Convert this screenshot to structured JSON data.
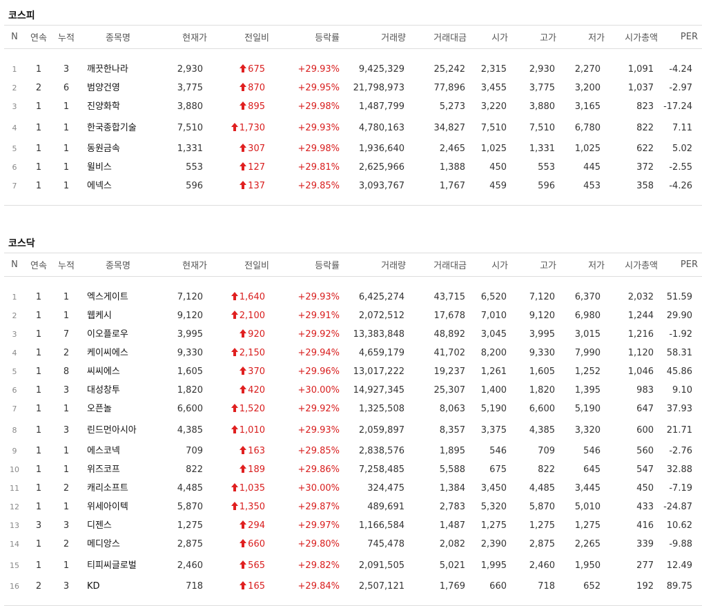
{
  "headers": [
    "N",
    "연속",
    "누적",
    "종목명",
    "현재가",
    "전일비",
    "등락률",
    "거래량",
    "거래대금",
    "시가",
    "고가",
    "저가",
    "시가총액",
    "PER"
  ],
  "kospi": {
    "title": "코스피",
    "rows": [
      {
        "n": "1",
        "cont": "1",
        "acc": "3",
        "name": "깨끗한나라",
        "price": "2,930",
        "diff": "675",
        "rate": "+29.93%",
        "vol": "9,425,329",
        "amt": "25,242",
        "open": "2,315",
        "high": "2,930",
        "low": "2,270",
        "cap": "1,091",
        "per": "-4.24"
      },
      {
        "n": "2",
        "cont": "2",
        "acc": "6",
        "name": "범양건영",
        "price": "3,775",
        "diff": "870",
        "rate": "+29.95%",
        "vol": "21,798,973",
        "amt": "77,896",
        "open": "3,455",
        "high": "3,775",
        "low": "3,200",
        "cap": "1,037",
        "per": "-2.97"
      },
      {
        "n": "3",
        "cont": "1",
        "acc": "1",
        "name": "진양화학",
        "price": "3,880",
        "diff": "895",
        "rate": "+29.98%",
        "vol": "1,487,799",
        "amt": "5,273",
        "open": "3,220",
        "high": "3,880",
        "low": "3,165",
        "cap": "823",
        "per": "-17.24"
      },
      {
        "n": "4",
        "cont": "1",
        "acc": "1",
        "name": "한국종합기술",
        "price": "7,510",
        "diff": "1,730",
        "rate": "+29.93%",
        "vol": "4,780,163",
        "amt": "34,827",
        "open": "7,510",
        "high": "7,510",
        "low": "6,780",
        "cap": "822",
        "per": "7.11"
      },
      {
        "n": "5",
        "cont": "1",
        "acc": "1",
        "name": "동원금속",
        "price": "1,331",
        "diff": "307",
        "rate": "+29.98%",
        "vol": "1,936,640",
        "amt": "2,465",
        "open": "1,025",
        "high": "1,331",
        "low": "1,025",
        "cap": "622",
        "per": "5.02"
      },
      {
        "n": "6",
        "cont": "1",
        "acc": "1",
        "name": "윌비스",
        "price": "553",
        "diff": "127",
        "rate": "+29.81%",
        "vol": "2,625,966",
        "amt": "1,388",
        "open": "450",
        "high": "553",
        "low": "445",
        "cap": "372",
        "per": "-2.55"
      },
      {
        "n": "7",
        "cont": "1",
        "acc": "1",
        "name": "에넥스",
        "price": "596",
        "diff": "137",
        "rate": "+29.85%",
        "vol": "3,093,767",
        "amt": "1,767",
        "open": "459",
        "high": "596",
        "low": "453",
        "cap": "358",
        "per": "-4.26"
      }
    ]
  },
  "kosdaq": {
    "title": "코스닥",
    "rows": [
      {
        "n": "1",
        "cont": "1",
        "acc": "1",
        "name": "엑스게이트",
        "price": "7,120",
        "diff": "1,640",
        "rate": "+29.93%",
        "vol": "6,425,274",
        "amt": "43,715",
        "open": "6,520",
        "high": "7,120",
        "low": "6,370",
        "cap": "2,032",
        "per": "51.59"
      },
      {
        "n": "2",
        "cont": "1",
        "acc": "1",
        "name": "웹케시",
        "price": "9,120",
        "diff": "2,100",
        "rate": "+29.91%",
        "vol": "2,072,512",
        "amt": "17,678",
        "open": "7,010",
        "high": "9,120",
        "low": "6,980",
        "cap": "1,244",
        "per": "29.90"
      },
      {
        "n": "3",
        "cont": "1",
        "acc": "7",
        "name": "이오플로우",
        "price": "3,995",
        "diff": "920",
        "rate": "+29.92%",
        "vol": "13,383,848",
        "amt": "48,892",
        "open": "3,045",
        "high": "3,995",
        "low": "3,015",
        "cap": "1,216",
        "per": "-1.92"
      },
      {
        "n": "4",
        "cont": "1",
        "acc": "2",
        "name": "케이씨에스",
        "price": "9,330",
        "diff": "2,150",
        "rate": "+29.94%",
        "vol": "4,659,179",
        "amt": "41,702",
        "open": "8,200",
        "high": "9,330",
        "low": "7,990",
        "cap": "1,120",
        "per": "58.31"
      },
      {
        "n": "5",
        "cont": "1",
        "acc": "8",
        "name": "씨씨에스",
        "price": "1,605",
        "diff": "370",
        "rate": "+29.96%",
        "vol": "13,017,222",
        "amt": "19,237",
        "open": "1,261",
        "high": "1,605",
        "low": "1,252",
        "cap": "1,046",
        "per": "45.86"
      },
      {
        "n": "6",
        "cont": "1",
        "acc": "3",
        "name": "대성창투",
        "price": "1,820",
        "diff": "420",
        "rate": "+30.00%",
        "vol": "14,927,345",
        "amt": "25,307",
        "open": "1,400",
        "high": "1,820",
        "low": "1,395",
        "cap": "983",
        "per": "9.10"
      },
      {
        "n": "7",
        "cont": "1",
        "acc": "1",
        "name": "오픈놀",
        "price": "6,600",
        "diff": "1,520",
        "rate": "+29.92%",
        "vol": "1,325,508",
        "amt": "8,063",
        "open": "5,190",
        "high": "6,600",
        "low": "5,190",
        "cap": "647",
        "per": "37.93"
      },
      {
        "n": "8",
        "cont": "1",
        "acc": "3",
        "name": "린드먼아시아",
        "price": "4,385",
        "diff": "1,010",
        "rate": "+29.93%",
        "vol": "2,059,897",
        "amt": "8,357",
        "open": "3,375",
        "high": "4,385",
        "low": "3,320",
        "cap": "600",
        "per": "21.71"
      },
      {
        "n": "9",
        "cont": "1",
        "acc": "1",
        "name": "에스코넥",
        "price": "709",
        "diff": "163",
        "rate": "+29.85%",
        "vol": "2,838,576",
        "amt": "1,895",
        "open": "546",
        "high": "709",
        "low": "546",
        "cap": "560",
        "per": "-2.76"
      },
      {
        "n": "10",
        "cont": "1",
        "acc": "1",
        "name": "위즈코프",
        "price": "822",
        "diff": "189",
        "rate": "+29.86%",
        "vol": "7,258,485",
        "amt": "5,588",
        "open": "675",
        "high": "822",
        "low": "645",
        "cap": "547",
        "per": "32.88"
      },
      {
        "n": "11",
        "cont": "1",
        "acc": "2",
        "name": "캐리소프트",
        "price": "4,485",
        "diff": "1,035",
        "rate": "+30.00%",
        "vol": "324,475",
        "amt": "1,384",
        "open": "3,450",
        "high": "4,485",
        "low": "3,445",
        "cap": "450",
        "per": "-7.19"
      },
      {
        "n": "12",
        "cont": "1",
        "acc": "1",
        "name": "위세아이텍",
        "price": "5,870",
        "diff": "1,350",
        "rate": "+29.87%",
        "vol": "489,691",
        "amt": "2,783",
        "open": "5,320",
        "high": "5,870",
        "low": "5,010",
        "cap": "433",
        "per": "-24.87"
      },
      {
        "n": "13",
        "cont": "3",
        "acc": "3",
        "name": "디젠스",
        "price": "1,275",
        "diff": "294",
        "rate": "+29.97%",
        "vol": "1,166,584",
        "amt": "1,487",
        "open": "1,275",
        "high": "1,275",
        "low": "1,275",
        "cap": "416",
        "per": "10.62"
      },
      {
        "n": "14",
        "cont": "1",
        "acc": "2",
        "name": "메디앙스",
        "price": "2,875",
        "diff": "660",
        "rate": "+29.80%",
        "vol": "745,478",
        "amt": "2,082",
        "open": "2,390",
        "high": "2,875",
        "low": "2,265",
        "cap": "339",
        "per": "-9.88"
      },
      {
        "n": "15",
        "cont": "1",
        "acc": "1",
        "name": "티피씨글로벌",
        "price": "2,460",
        "diff": "565",
        "rate": "+29.82%",
        "vol": "2,091,505",
        "amt": "5,021",
        "open": "1,995",
        "high": "2,460",
        "low": "1,950",
        "cap": "277",
        "per": "12.49"
      },
      {
        "n": "16",
        "cont": "2",
        "acc": "3",
        "name": "KD",
        "price": "718",
        "diff": "165",
        "rate": "+29.84%",
        "vol": "2,507,121",
        "amt": "1,769",
        "open": "660",
        "high": "718",
        "low": "652",
        "cap": "192",
        "per": "89.75"
      }
    ]
  },
  "colors": {
    "up": "#d81d1d",
    "arrow": "#e02020",
    "border": "#dddddd"
  },
  "icons": {
    "diff_icon": "up-arrow-icon"
  }
}
